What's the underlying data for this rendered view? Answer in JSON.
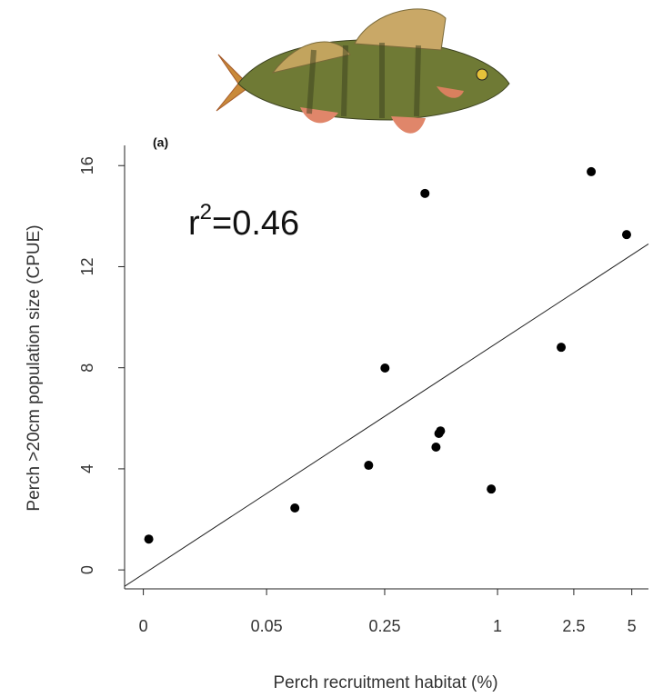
{
  "chart_data": {
    "type": "scatter",
    "panel_label": "(a)",
    "annotation": {
      "base": "r",
      "sup": "2",
      "rest": "=0.46"
    },
    "x_label": "Perch recruitment habitat (%)",
    "y_label": "Perch >20cm population size (CPUE)",
    "xscale": "log",
    "xoffset": 0.015,
    "xlim": [
      -0.003,
      6.1
    ],
    "ylim": [
      -0.75,
      16.8
    ],
    "xticks": [
      0,
      0.05,
      0.25,
      1,
      2.5,
      5
    ],
    "yticks": [
      0,
      4,
      8,
      12,
      16
    ],
    "color": "#000000",
    "x": [
      0.001,
      0.076,
      0.204,
      0.251,
      0.413,
      0.473,
      0.49,
      0.5,
      0.927,
      2.15,
      3.08,
      4.7
    ],
    "y": [
      1.22,
      2.45,
      4.14,
      7.99,
      14.9,
      4.86,
      5.4,
      5.5,
      3.2,
      8.81,
      15.76,
      13.27
    ],
    "fit": {
      "x": [
        -0.003,
        6.1
      ],
      "y": [
        -0.65,
        12.9
      ]
    }
  }
}
